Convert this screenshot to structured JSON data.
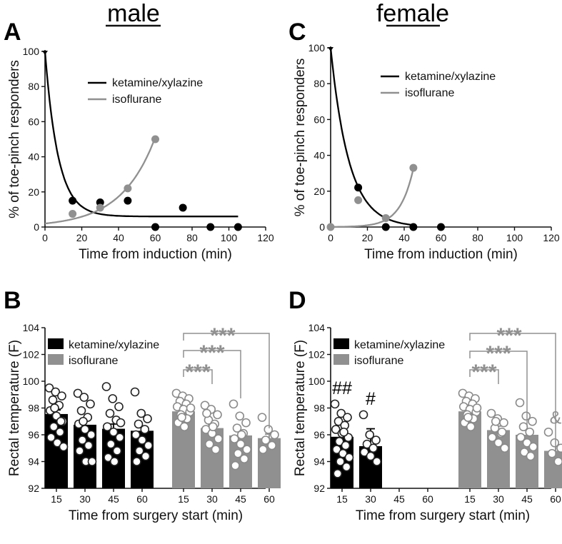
{
  "headers": {
    "male": "male",
    "female": "female"
  },
  "colors": {
    "ketamine": "#000000",
    "isoflurane": "#909090",
    "text": "#111111"
  },
  "chart_data": [
    {
      "panel": "A",
      "type": "scatter",
      "title": "male",
      "xlabel": "Time from induction (min)",
      "ylabel": "% of toe-pinch responders",
      "xlim": [
        0,
        120
      ],
      "ylim": [
        0,
        100
      ],
      "xticks": [
        "0",
        "20",
        "40",
        "60",
        "80",
        "100",
        "120"
      ],
      "yticks": [
        "0",
        "20",
        "40",
        "60",
        "80",
        "100"
      ],
      "legend": [
        "ketamine/xylazine",
        "isoflurane"
      ],
      "series": [
        {
          "name": "ketamine/xylazine",
          "x": [
            15,
            30,
            45,
            60,
            75,
            90,
            105
          ],
          "y": [
            15,
            14,
            15,
            0,
            11,
            0,
            0
          ],
          "fit": {
            "kind": "decay",
            "y0": 100,
            "plateau": 6,
            "k": 0.14,
            "xmax": 105
          }
        },
        {
          "name": "isoflurane",
          "x": [
            15,
            30,
            45,
            60
          ],
          "y": [
            7.5,
            11,
            22,
            50
          ],
          "fit": {
            "kind": "growth",
            "y0": 2,
            "k": 0.054,
            "xmax": 60
          }
        }
      ]
    },
    {
      "panel": "C",
      "type": "scatter",
      "title": "female",
      "xlabel": "Time from induction (min)",
      "ylabel": "% of toe-pinch responders",
      "xlim": [
        0,
        120
      ],
      "ylim": [
        0,
        100
      ],
      "xticks": [
        "0",
        "20",
        "40",
        "60",
        "80",
        "100",
        "120"
      ],
      "yticks": [
        "0",
        "20",
        "40",
        "60",
        "80",
        "100"
      ],
      "legend": [
        "ketamine/xylazine",
        "isoflurane"
      ],
      "series": [
        {
          "name": "ketamine/xylazine",
          "x": [
            15,
            30,
            45,
            60
          ],
          "y": [
            22,
            0,
            0,
            0
          ],
          "fit": {
            "kind": "decay",
            "y0": 100,
            "plateau": 0,
            "k": 0.1,
            "xmax": 45
          }
        },
        {
          "name": "isoflurane",
          "x": [
            0,
            15,
            30,
            45
          ],
          "y": [
            0,
            15,
            5,
            33
          ],
          "fit": {
            "kind": "growth",
            "y0": 0.06,
            "k": 0.14,
            "xmax": 45
          }
        }
      ]
    },
    {
      "panel": "B",
      "type": "bar",
      "xlabel": "Time from surgery start (min)",
      "ylabel": "Rectal temperature (F)",
      "ylim": [
        92,
        104
      ],
      "yticks": [
        "92",
        "94",
        "96",
        "98",
        "100",
        "102",
        "104"
      ],
      "legend": [
        "ketamine/xylazine",
        "isoflurane"
      ],
      "series": [
        {
          "name": "ketamine/xylazine",
          "categories": [
            "15",
            "30",
            "45",
            "60"
          ],
          "values": [
            97.55,
            96.75,
            96.45,
            96.3
          ],
          "errors": [
            0.3,
            0.3,
            0.35,
            0.35
          ],
          "points": [
            [
              99.5,
              99.2,
              98.9,
              98.6,
              98.2,
              97.8,
              97.4,
              97.0,
              96.6,
              96.2,
              95.8,
              95.4,
              95.1,
              98.0,
              97.0
            ],
            [
              99.1,
              98.8,
              98.3,
              97.8,
              97.3,
              96.8,
              96.4,
              96.0,
              95.6,
              95.2,
              94.8,
              94.0,
              94.0,
              97.0
            ],
            [
              99.6,
              98.7,
              98.1,
              97.6,
              97.1,
              96.6,
              96.2,
              95.8,
              95.3,
              94.8,
              94.3,
              94.0,
              96.9
            ],
            [
              99.2,
              97.6,
              97.2,
              96.8,
              96.4,
              96.0,
              95.6,
              95.2,
              94.8,
              94.4,
              94.0
            ]
          ]
        },
        {
          "name": "isoflurane",
          "categories": [
            "15",
            "30",
            "45",
            "60"
          ],
          "values": [
            97.75,
            96.5,
            95.95,
            95.75
          ],
          "errors": [
            0.2,
            0.25,
            0.35,
            0.3
          ],
          "points": [
            [
              99.1,
              98.9,
              98.7,
              98.5,
              98.3,
              98.1,
              97.9,
              97.7,
              97.5,
              97.2,
              96.9,
              96.6,
              98.0,
              97.3
            ],
            [
              98.2,
              97.9,
              97.5,
              97.1,
              96.8,
              96.4,
              96.1,
              95.7,
              95.3,
              94.9,
              97.6,
              96.6
            ],
            [
              98.3,
              97.4,
              96.9,
              96.5,
              96.1,
              95.7,
              95.3,
              94.9,
              94.6,
              94.2,
              93.7,
              96.0
            ],
            [
              97.3,
              96.4,
              96.0,
              95.6,
              95.2,
              94.9
            ]
          ]
        }
      ],
      "significance": [
        {
          "label": "***",
          "from": "15",
          "to": "30",
          "level": 1
        },
        {
          "label": "***",
          "from": "15",
          "to": "45",
          "level": 2
        },
        {
          "label": "***",
          "from": "15",
          "to": "60",
          "level": 3
        }
      ]
    },
    {
      "panel": "D",
      "type": "bar",
      "xlabel": "Time from surgery start (min)",
      "ylabel": "Rectal temperature (F)",
      "ylim": [
        92,
        104
      ],
      "yticks": [
        "92",
        "94",
        "96",
        "98",
        "100",
        "102",
        "104"
      ],
      "legend": [
        "ketamine/xylazine",
        "isoflurane"
      ],
      "series": [
        {
          "name": "ketamine/xylazine",
          "categories": [
            "15",
            "30",
            "45",
            "60"
          ],
          "values": [
            95.85,
            95.15,
            null,
            null
          ],
          "errors": [
            0.4,
            1.3,
            null,
            null
          ],
          "points": [
            [
              98.3,
              97.6,
              97.3,
              97.0,
              96.7,
              96.4,
              96.1,
              95.8,
              95.5,
              95.2,
              94.9,
              94.6,
              94.3,
              94.0,
              93.6,
              93.1,
              96.2
            ],
            [
              97.5,
              96.0,
              95.6,
              95.3,
              95.0,
              94.7,
              94.4,
              94.0
            ],
            [],
            []
          ],
          "markers": [
            "##",
            "#",
            "",
            ""
          ]
        },
        {
          "name": "isoflurane",
          "categories": [
            "15",
            "30",
            "45",
            "60"
          ],
          "values": [
            97.75,
            96.35,
            96.0,
            94.8
          ],
          "errors": [
            0.2,
            0.3,
            0.35,
            0.45
          ],
          "points": [
            [
              99.1,
              98.9,
              98.7,
              98.5,
              98.3,
              98.1,
              97.9,
              97.7,
              97.5,
              97.2,
              96.9,
              96.6,
              98.0,
              97.3
            ],
            [
              97.6,
              97.2,
              96.9,
              96.5,
              96.1,
              95.8,
              95.4,
              95.0,
              97.0,
              96.2
            ],
            [
              98.4,
              97.4,
              97.0,
              96.6,
              96.2,
              95.8,
              95.4,
              95.1,
              94.7,
              94.4
            ],
            [
              96.2,
              95.4,
              95.0,
              94.6,
              94.0
            ]
          ],
          "markers": [
            "",
            "",
            "",
            "&"
          ]
        }
      ],
      "significance": [
        {
          "label": "***",
          "from": "15",
          "to": "30",
          "level": 1
        },
        {
          "label": "***",
          "from": "15",
          "to": "45",
          "level": 2
        },
        {
          "label": "***",
          "from": "15",
          "to": "60",
          "level": 3
        }
      ]
    }
  ]
}
